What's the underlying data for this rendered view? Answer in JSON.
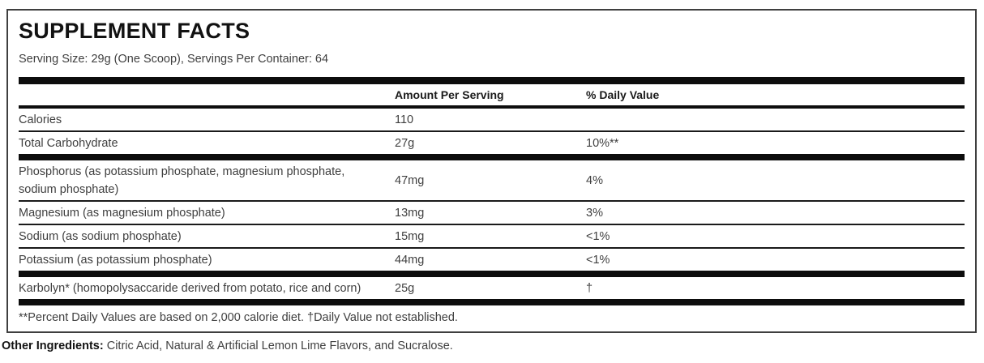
{
  "title": "SUPPLEMENT FACTS",
  "serving_info": "Serving Size: 29g (One Scoop), Servings Per Container: 64",
  "table": {
    "headers": {
      "amount": "Amount Per Serving",
      "daily_value": "% Daily Value"
    },
    "rows": [
      {
        "name": "Calories",
        "amount": "110",
        "daily_value": ""
      },
      {
        "name": "Total Carbohydrate",
        "amount": "27g",
        "daily_value": "10%**"
      },
      {
        "name": "Phosphorus (as potassium phosphate, magnesium phosphate, sodium phosphate)",
        "amount": "47mg",
        "daily_value": "4%"
      },
      {
        "name": "Magnesium (as magnesium phosphate)",
        "amount": "13mg",
        "daily_value": "3%"
      },
      {
        "name": "Sodium (as sodium phosphate)",
        "amount": "15mg",
        "daily_value": "<1%"
      },
      {
        "name": "Potassium (as potassium phosphate)",
        "amount": "44mg",
        "daily_value": "<1%"
      },
      {
        "name": "Karbolyn* (homopolysaccaride derived from potato, rice and corn)",
        "amount": "25g",
        "daily_value": "†"
      }
    ],
    "footnote": "**Percent Daily Values are based on 2,000 calorie diet. †Daily Value not established."
  },
  "other_ingredients": {
    "label": "Other Ingredients:",
    "text": " Citric Acid, Natural & Artificial Lemon Lime Flavors, and Sucralose."
  },
  "colors": {
    "divider_bar": "#0d0d0d",
    "border": "#3f3f3f",
    "body_text": "#3f3f3f",
    "heading_text": "#121212"
  }
}
